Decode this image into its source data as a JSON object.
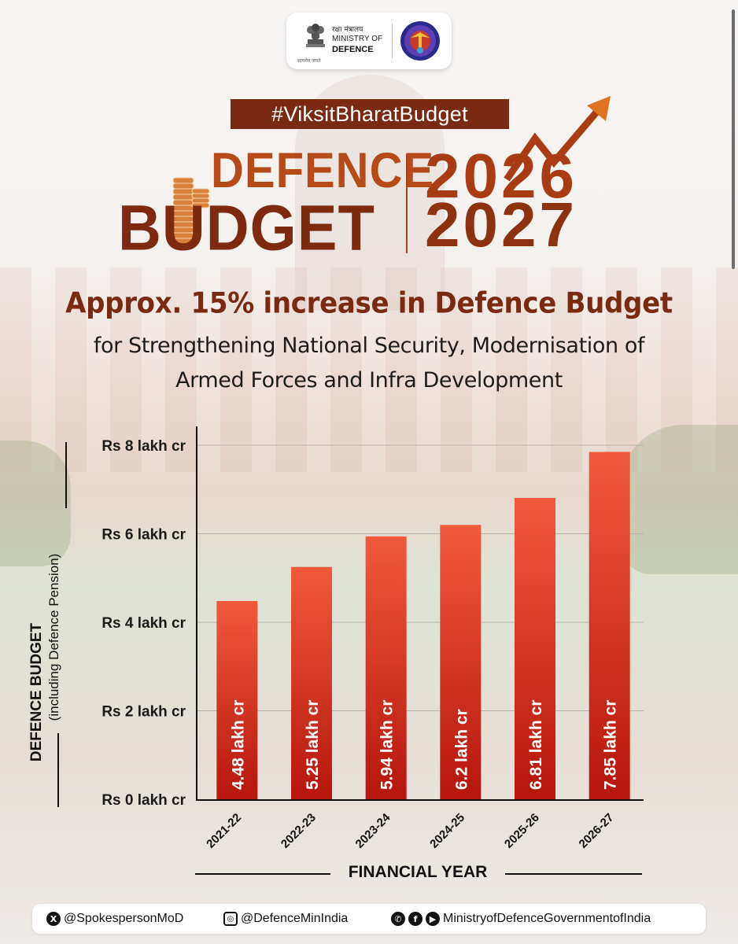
{
  "header": {
    "hindi_label": "रक्षा मंत्रालय",
    "ministry_line1": "MINISTRY OF",
    "ministry_line2": "DEFENCE",
    "emblem_motto": "सत्यमेव जयते"
  },
  "hashtag": "#ViksitBharatBudget",
  "title": {
    "word1": "DEFENCE",
    "word2": "BUDGET",
    "year_line1": "2026",
    "year_line2": "2027"
  },
  "headline": "Approx. 15% increase in Defence Budget",
  "subheadline_line1": "for Strengthening National Security, Modernisation of",
  "subheadline_line2": "Armed Forces and Infra Development",
  "chart_data": {
    "type": "bar",
    "categories": [
      "2021-22",
      "2022-23",
      "2023-24",
      "2024-25",
      "2025-26",
      "2026-27"
    ],
    "values": [
      4.48,
      5.25,
      5.94,
      6.2,
      6.81,
      7.85
    ],
    "data_labels": [
      "4.48 lakh cr",
      "5.25 lakh cr",
      "5.94 lakh cr",
      "6.2 lakh cr",
      "6.81 lakh cr",
      "7.85 lakh cr"
    ],
    "ylim": [
      0,
      8
    ],
    "yticks": [
      0,
      2,
      4,
      6,
      8
    ],
    "ytick_labels": [
      "Rs 0 lakh cr",
      "Rs 2 lakh cr",
      "Rs 4 lakh cr",
      "Rs 6 lakh cr",
      "Rs 8 lakh cr"
    ],
    "ylabel": "DEFENCE BUDGET",
    "ylabel_sub": "(including Defence Pension)",
    "xlabel": "FINANCIAL YEAR",
    "grid": true,
    "bar_color_top": "#f05a3c",
    "bar_color_bottom": "#b5160d"
  },
  "footer": {
    "x_handle": "@SpokespersonMoD",
    "instagram_handle": "@DefenceMinIndia",
    "multi_handle": "MinistryofDefenceGovernmentofIndia"
  },
  "colors": {
    "brand_dark": "#7a2a12",
    "brand_orange": "#b64a18"
  }
}
